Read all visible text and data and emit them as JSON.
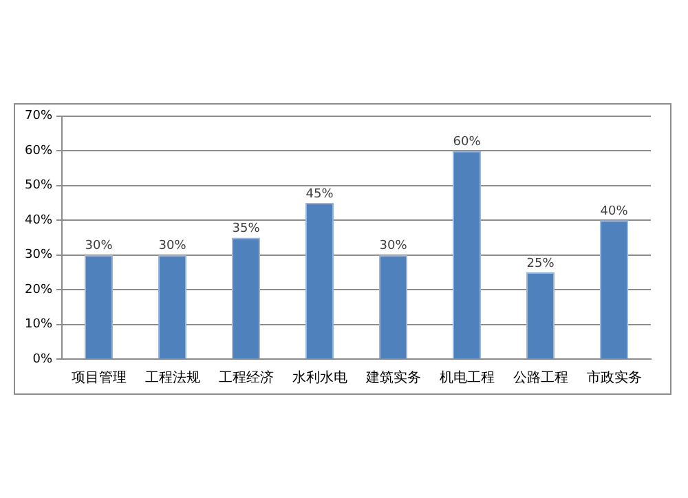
{
  "chart_data": {
    "type": "bar",
    "categories": [
      "项目管理",
      "工程法规",
      "工程经济",
      "水利水电",
      "建筑实务",
      "机电工程",
      "公路工程",
      "市政实务"
    ],
    "values": [
      30,
      30,
      35,
      45,
      30,
      60,
      25,
      40
    ],
    "color": "#4f81bd",
    "data_labels": true,
    "value_labels": [
      "30%",
      "30%",
      "35%",
      "45%",
      "30%",
      "60%",
      "25%",
      "40%"
    ],
    "ylim": [
      0,
      70
    ],
    "yticks": [
      {
        "value": 0,
        "label": "0%"
      },
      {
        "value": 10,
        "label": "10%"
      },
      {
        "value": 20,
        "label": "20%"
      },
      {
        "value": 30,
        "label": "30%"
      },
      {
        "value": 40,
        "label": "40%"
      },
      {
        "value": 50,
        "label": "50%"
      },
      {
        "value": 60,
        "label": "60%"
      },
      {
        "value": 70,
        "label": "70%"
      }
    ],
    "grid": "y"
  }
}
